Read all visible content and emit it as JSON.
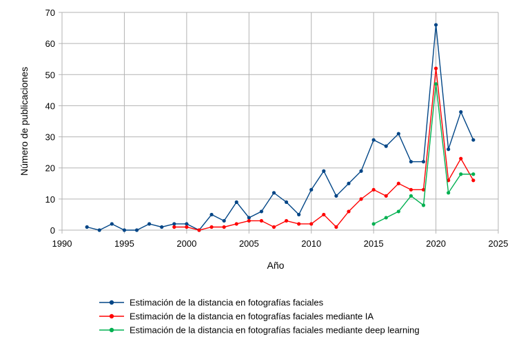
{
  "chart_data": {
    "type": "line",
    "xlabel": "Año",
    "ylabel": "Número de publicaciones",
    "xlim": [
      1990,
      2025
    ],
    "ylim": [
      0,
      70
    ],
    "xticks": [
      1990,
      1995,
      2000,
      2005,
      2010,
      2015,
      2020,
      2025
    ],
    "yticks": [
      0,
      10,
      20,
      30,
      40,
      50,
      60,
      70
    ],
    "grid": true,
    "legend_position": "bottom",
    "series": [
      {
        "name": "Estimación de la distancia en fotografías faciales",
        "color": "#004586",
        "x": [
          1992,
          1993,
          1994,
          1995,
          1996,
          1997,
          1998,
          1999,
          2000,
          2001,
          2002,
          2003,
          2004,
          2005,
          2006,
          2007,
          2008,
          2009,
          2010,
          2011,
          2012,
          2013,
          2014,
          2015,
          2016,
          2017,
          2018,
          2019,
          2020,
          2021,
          2022,
          2023
        ],
        "values": [
          1,
          0,
          2,
          0,
          0,
          2,
          1,
          2,
          2,
          0,
          5,
          3,
          9,
          4,
          6,
          12,
          9,
          5,
          13,
          19,
          11,
          15,
          19,
          29,
          27,
          31,
          22,
          22,
          66,
          26,
          38,
          29
        ]
      },
      {
        "name": "Estimación de la distancia en fotografías faciales mediante IA",
        "color": "#ff0000",
        "x": [
          1999,
          2000,
          2001,
          2002,
          2003,
          2004,
          2005,
          2006,
          2007,
          2008,
          2009,
          2010,
          2011,
          2012,
          2013,
          2014,
          2015,
          2016,
          2017,
          2018,
          2019,
          2020,
          2021,
          2022,
          2023
        ],
        "values": [
          1,
          1,
          0,
          1,
          1,
          2,
          3,
          3,
          1,
          3,
          2,
          2,
          5,
          1,
          6,
          10,
          13,
          11,
          15,
          13,
          13,
          52,
          16,
          23,
          16
        ]
      },
      {
        "name": "Estimación de la distancia en fotografías faciales mediante deep learning",
        "color": "#00b050",
        "x": [
          2015,
          2016,
          2017,
          2018,
          2019,
          2020,
          2021,
          2022,
          2023
        ],
        "values": [
          2,
          4,
          6,
          11,
          8,
          47,
          12,
          18,
          18
        ]
      }
    ]
  }
}
